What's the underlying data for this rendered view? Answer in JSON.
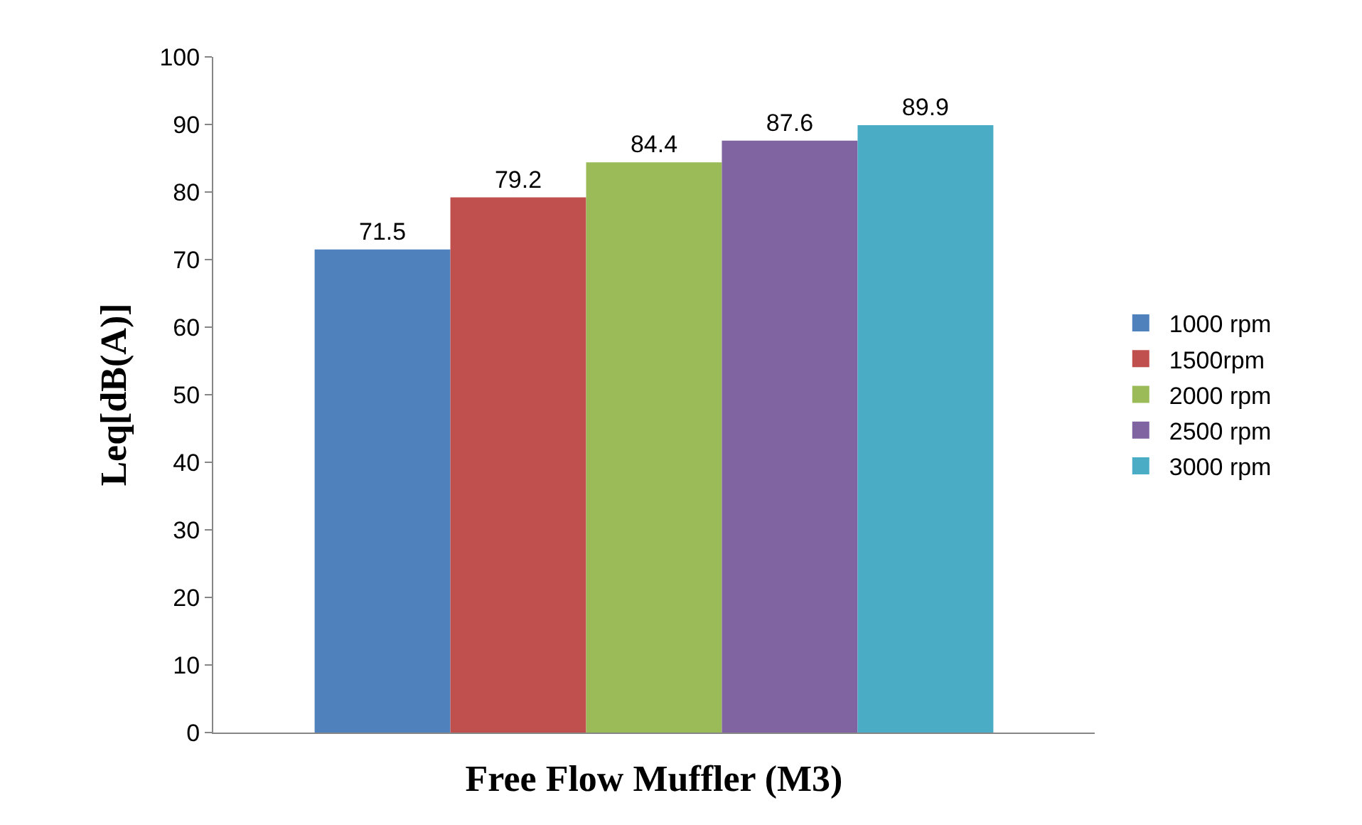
{
  "chart_data": {
    "type": "bar",
    "xlabel": "Free Flow Muffler (M3)",
    "ylabel": "Leq[dB(A)]",
    "categories": [
      null
    ],
    "series": [
      {
        "name": "1000 rpm",
        "color": "#4f81bd",
        "values": [
          71.5
        ]
      },
      {
        "name": "1500rpm",
        "color": "#c0504d",
        "values": [
          79.2
        ]
      },
      {
        "name": "2000 rpm",
        "color": "#9bbb59",
        "values": [
          84.4
        ]
      },
      {
        "name": "2500 rpm",
        "color": "#8064a2",
        "values": [
          87.6
        ]
      },
      {
        "name": "3000 rpm",
        "color": "#4bacc6",
        "values": [
          89.9
        ]
      }
    ],
    "ylim": [
      0,
      100
    ],
    "yticks": [
      0,
      10,
      20,
      30,
      40,
      50,
      60,
      70,
      80,
      90,
      100
    ],
    "data_labels": true,
    "legend": "right"
  }
}
